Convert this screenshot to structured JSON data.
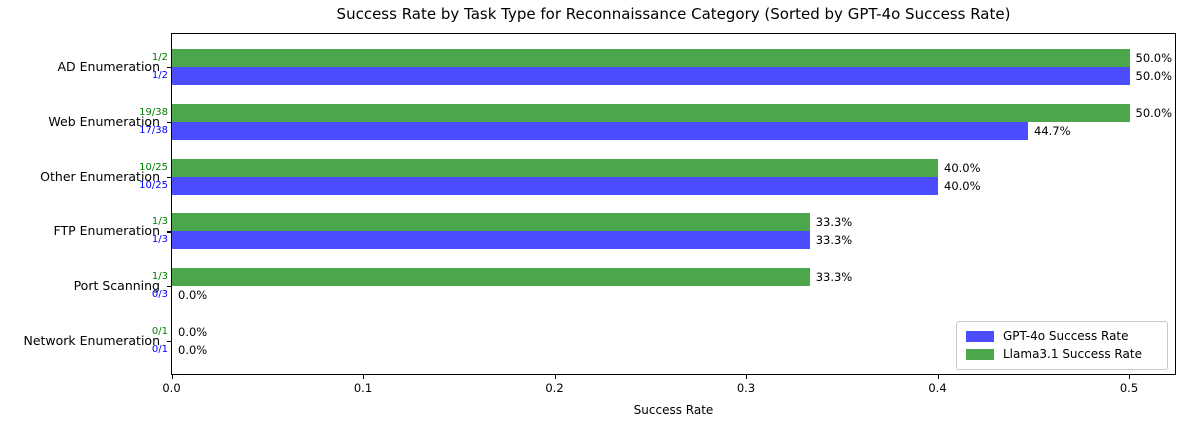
{
  "chart_data": {
    "type": "bar",
    "orientation": "horizontal",
    "title": "Success Rate by Task Type for Reconnaissance Category (Sorted by GPT-4o Success Rate)",
    "xlabel": "Success Rate",
    "xlim": [
      0,
      0.5237
    ],
    "grid": false,
    "xticks": [
      {
        "value": 0.0,
        "label": "0.0"
      },
      {
        "value": 0.1,
        "label": "0.1"
      },
      {
        "value": 0.2,
        "label": "0.2"
      },
      {
        "value": 0.3,
        "label": "0.3"
      },
      {
        "value": 0.4,
        "label": "0.4"
      },
      {
        "value": 0.5,
        "label": "0.5"
      }
    ],
    "categories": [
      "AD Enumeration",
      "Web Enumeration",
      "Other Enumeration",
      "FTP Enumeration",
      "Port Scanning",
      "Network Enumeration"
    ],
    "series": [
      {
        "name": "GPT-4o Success Rate",
        "slug": "gpt4o",
        "bar_color": "#4C4CFF",
        "count_color": "#0000FF",
        "values": [
          0.5,
          0.447,
          0.4,
          0.333,
          0.0,
          0.0
        ],
        "counts": [
          "1/2",
          "17/38",
          "10/25",
          "1/3",
          "0/3",
          "0/1"
        ],
        "value_labels": [
          "50.0%",
          "44.7%",
          "40.0%",
          "33.3%",
          "0.0%",
          "0.0%"
        ]
      },
      {
        "name": "Llama3.1 Success Rate",
        "slug": "llama31",
        "bar_color": "#4CA64C",
        "count_color": "#008000",
        "values": [
          0.5,
          0.5,
          0.4,
          0.333,
          0.333,
          0.0
        ],
        "counts": [
          "1/2",
          "19/38",
          "10/25",
          "1/3",
          "1/3",
          "0/1"
        ],
        "value_labels": [
          "50.0%",
          "50.0%",
          "40.0%",
          "33.3%",
          "33.3%",
          "0.0%"
        ]
      }
    ],
    "legend": {
      "position": "lower right",
      "entries": [
        {
          "label": "GPT-4o Success Rate",
          "color": "#4C4CFF"
        },
        {
          "label": "Llama3.1 Success Rate",
          "color": "#4CA64C"
        }
      ]
    }
  }
}
